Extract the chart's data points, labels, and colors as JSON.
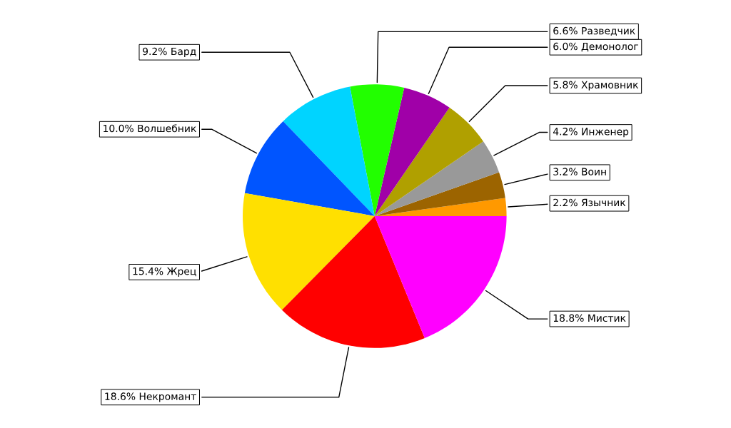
{
  "chart_data": {
    "type": "pie",
    "categories": [
      "Язычник",
      "Воин",
      "Инженер",
      "Храмовник",
      "Демонолог",
      "Разведчик",
      "Бард",
      "Волшебник",
      "Жрец",
      "Некромант",
      "Мистик"
    ],
    "values": [
      2.2,
      3.2,
      4.2,
      5.8,
      6.0,
      6.6,
      9.2,
      10.0,
      15.4,
      18.6,
      18.8
    ],
    "value_labels": [
      "2.2%",
      "3.2%",
      "4.2%",
      "5.8%",
      "6.0%",
      "6.6%",
      "9.2%",
      "10.0%",
      "15.4%",
      "18.6%",
      "18.8%"
    ],
    "colors": [
      "#ff9900",
      "#9c6400",
      "#999999",
      "#b0a000",
      "#a000a8",
      "#22ff00",
      "#00d4ff",
      "#0055ff",
      "#ffe000",
      "#ff0000",
      "#ff00ff"
    ],
    "legend": false
  }
}
